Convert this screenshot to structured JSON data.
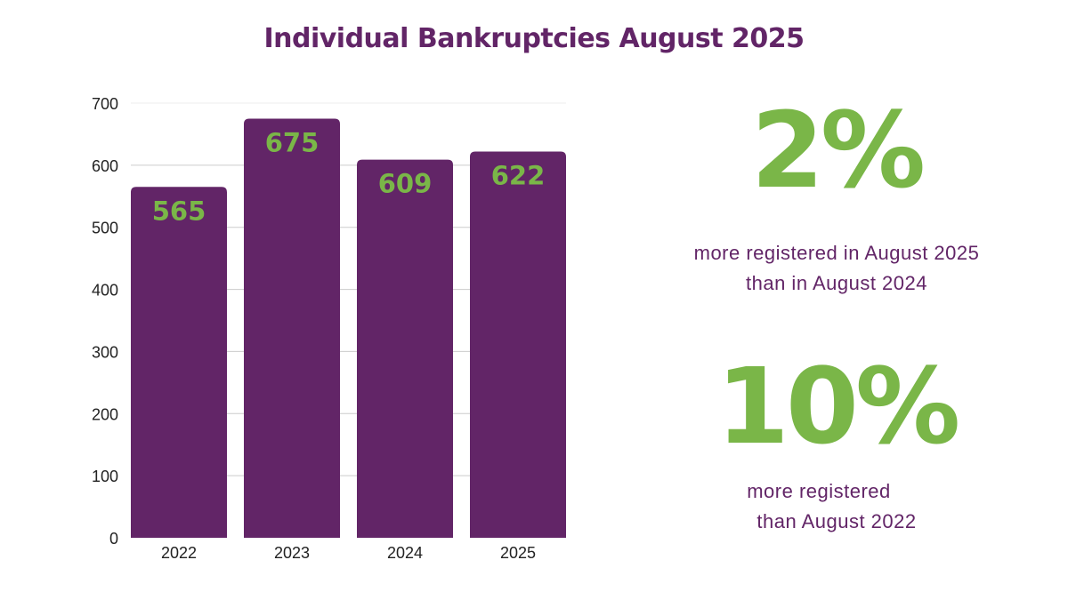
{
  "chart_data": {
    "type": "bar",
    "title": "Individual Bankruptcies August 2025",
    "categories": [
      "2022",
      "2023",
      "2024",
      "2025"
    ],
    "values": [
      565,
      675,
      609,
      622
    ],
    "ylim": [
      0,
      700
    ],
    "yticks": [
      0,
      100,
      200,
      300,
      400,
      500,
      600,
      700
    ],
    "xlabel": "",
    "ylabel": "",
    "grid": true,
    "bar_color": "#622567",
    "label_color": "#7ab648"
  },
  "stats": [
    {
      "value": "2%",
      "line1": "more registered in August 2025",
      "line2": "than in August 2024"
    },
    {
      "value": "10%",
      "line1": "more registered",
      "line2": "than August 2022"
    }
  ]
}
